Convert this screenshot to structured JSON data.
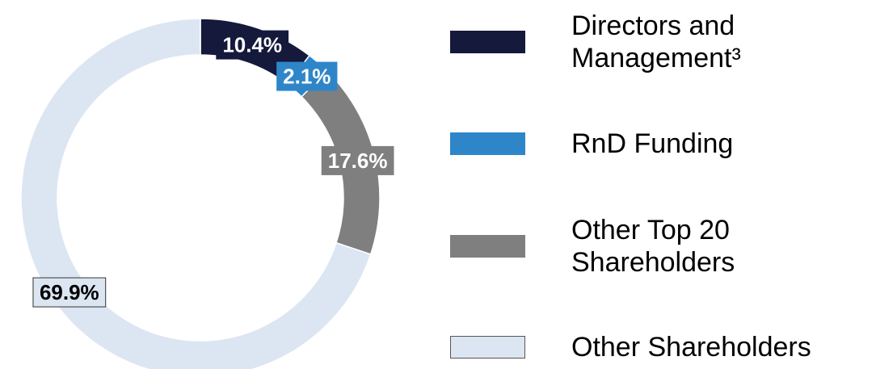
{
  "chart_data": {
    "type": "pie",
    "donut": true,
    "categories": [
      "Directors and Management³",
      "RnD Funding",
      "Other Top 20 Shareholders",
      "Other Shareholders"
    ],
    "values": [
      10.4,
      2.1,
      17.6,
      69.9
    ],
    "value_labels": [
      "10.4%",
      "2.1%",
      "17.6%",
      "69.9%"
    ],
    "colors": [
      "#15193b",
      "#2e86c9",
      "#7f7f7f",
      "#dce6f2"
    ],
    "legend": "right"
  }
}
